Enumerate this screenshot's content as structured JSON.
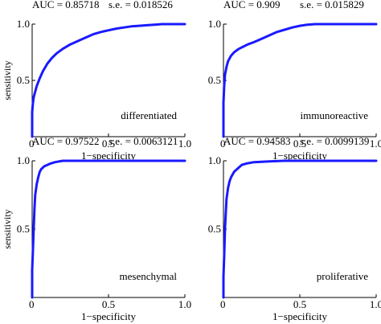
{
  "chart_data": [
    {
      "type": "line",
      "panel_label": "differentiated",
      "auc_text": "AUC = 0.85718",
      "se_text": "s.e. = 0.018526",
      "xlabel": "1−specificity",
      "ylabel": "sensitivity",
      "xlim": [
        0,
        1
      ],
      "ylim": [
        0,
        1
      ],
      "x_ticks": [
        "0",
        "0.5",
        "1.0"
      ],
      "y_ticks": [
        "0",
        "0.5",
        "1.0"
      ],
      "series_color": "#1a1aff",
      "x": [
        0,
        0,
        0.005,
        0.01,
        0.02,
        0.03,
        0.05,
        0.07,
        0.1,
        0.13,
        0.16,
        0.2,
        0.25,
        0.3,
        0.35,
        0.4,
        0.45,
        0.5,
        0.55,
        0.6,
        0.65,
        0.7,
        0.75,
        0.8,
        0.85,
        0.9,
        1.0
      ],
      "y": [
        0,
        0.22,
        0.3,
        0.35,
        0.4,
        0.45,
        0.52,
        0.58,
        0.65,
        0.7,
        0.74,
        0.78,
        0.82,
        0.85,
        0.88,
        0.91,
        0.93,
        0.945,
        0.96,
        0.97,
        0.98,
        0.985,
        0.99,
        0.995,
        1.0,
        1.0,
        1.0
      ]
    },
    {
      "type": "line",
      "panel_label": "immunoreactive",
      "auc_text": "AUC = 0.909",
      "se_text": "s.e. = 0.015829",
      "xlabel": "1−specificity",
      "ylabel": "",
      "xlim": [
        0,
        1
      ],
      "ylim": [
        0,
        1
      ],
      "x_ticks": [
        "0",
        "0.5",
        "1.0"
      ],
      "y_ticks": [
        "0",
        "0.5",
        "1.0"
      ],
      "series_color": "#1a1aff",
      "x": [
        0,
        0,
        0.005,
        0.01,
        0.02,
        0.03,
        0.05,
        0.07,
        0.1,
        0.13,
        0.16,
        0.2,
        0.25,
        0.3,
        0.35,
        0.4,
        0.45,
        0.5,
        0.55,
        0.6,
        0.7,
        0.8,
        0.9,
        1.0
      ],
      "y": [
        0,
        0.3,
        0.45,
        0.55,
        0.62,
        0.67,
        0.72,
        0.75,
        0.78,
        0.8,
        0.82,
        0.84,
        0.87,
        0.9,
        0.93,
        0.95,
        0.97,
        0.985,
        0.995,
        1.0,
        1.0,
        1.0,
        1.0,
        1.0
      ]
    },
    {
      "type": "line",
      "panel_label": "mesenchymal",
      "auc_text": "AUC = 0.97522",
      "se_text": "s.e. = 0.0063121",
      "xlabel": "1−specificity",
      "ylabel": "sensitivity",
      "xlim": [
        0,
        1
      ],
      "ylim": [
        0,
        1
      ],
      "x_ticks": [
        "0",
        "0.5",
        "1.0"
      ],
      "y_ticks": [
        "0",
        "0.5",
        "1.0"
      ],
      "series_color": "#1a1aff",
      "x": [
        0,
        0,
        0.005,
        0.01,
        0.015,
        0.02,
        0.03,
        0.04,
        0.05,
        0.06,
        0.08,
        0.1,
        0.12,
        0.15,
        0.2,
        0.3,
        1.0
      ],
      "y": [
        0,
        0.2,
        0.35,
        0.5,
        0.65,
        0.75,
        0.83,
        0.88,
        0.92,
        0.94,
        0.96,
        0.97,
        0.98,
        0.99,
        1.0,
        1.0,
        1.0
      ]
    },
    {
      "type": "line",
      "panel_label": "proliferative",
      "auc_text": "AUC = 0.94583",
      "se_text": "s.e. = 0.0099139",
      "xlabel": "1−specificity",
      "ylabel": "",
      "xlim": [
        0,
        1
      ],
      "ylim": [
        0,
        1
      ],
      "x_ticks": [
        "0",
        "0.5",
        "1.0"
      ],
      "y_ticks": [
        "0",
        "0.5",
        "1.0"
      ],
      "series_color": "#1a1aff",
      "x": [
        0,
        0,
        0.005,
        0.01,
        0.015,
        0.02,
        0.03,
        0.04,
        0.05,
        0.07,
        0.1,
        0.12,
        0.15,
        0.2,
        0.3,
        0.4,
        0.5,
        1.0
      ],
      "y": [
        0,
        0.15,
        0.3,
        0.5,
        0.62,
        0.72,
        0.8,
        0.85,
        0.88,
        0.92,
        0.95,
        0.97,
        0.98,
        0.99,
        0.995,
        1.0,
        1.0,
        1.0
      ]
    }
  ]
}
